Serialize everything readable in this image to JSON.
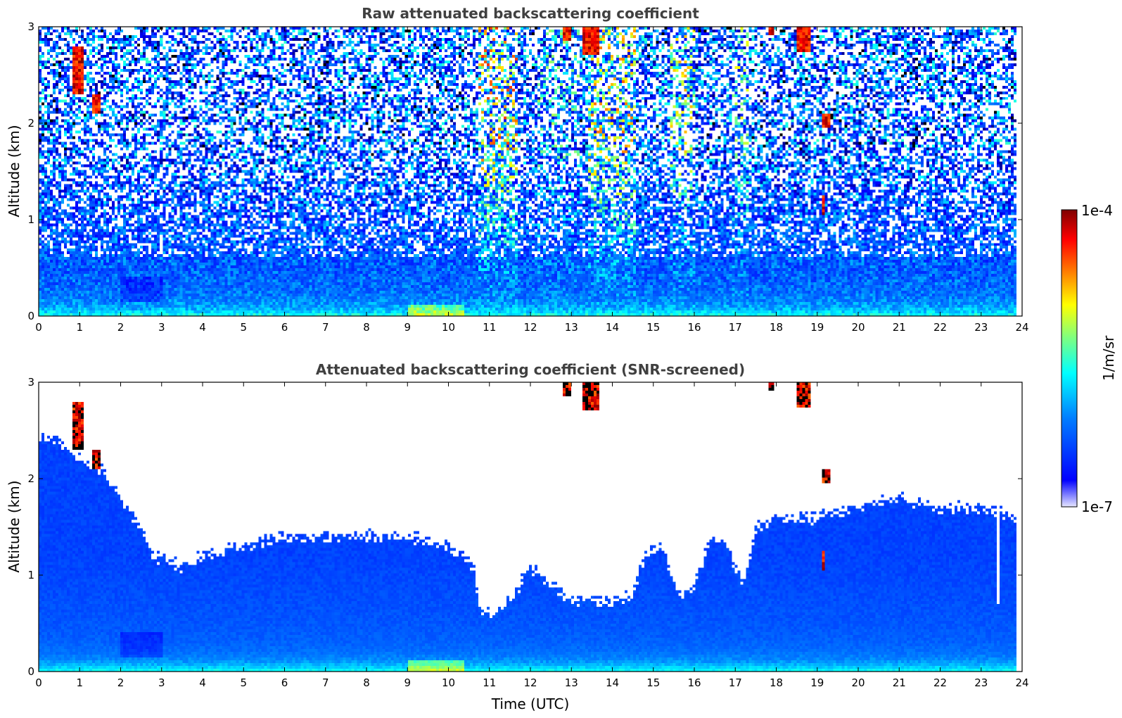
{
  "chart_data": [
    {
      "type": "heatmap",
      "title": "Raw attenuated backscattering coefficient",
      "xlabel": "",
      "ylabel": "Altitude (km)",
      "xlim": [
        0,
        24
      ],
      "ylim": [
        0,
        3
      ],
      "x_ticks": [
        "0",
        "1",
        "2",
        "3",
        "4",
        "5",
        "6",
        "7",
        "8",
        "9",
        "10",
        "11",
        "12",
        "13",
        "14",
        "15",
        "16",
        "17",
        "18",
        "19",
        "20",
        "21",
        "22",
        "23",
        "24"
      ],
      "y_ticks": [
        "0",
        "1",
        "2",
        "3"
      ],
      "screened": false
    },
    {
      "type": "heatmap",
      "title": "Attenuated backscattering coefficient (SNR-screened)",
      "xlabel": "Time (UTC)",
      "ylabel": "Altitude (km)",
      "xlim": [
        0,
        24
      ],
      "ylim": [
        0,
        3
      ],
      "x_ticks": [
        "0",
        "1",
        "2",
        "3",
        "4",
        "5",
        "6",
        "7",
        "8",
        "9",
        "10",
        "11",
        "12",
        "13",
        "14",
        "15",
        "16",
        "17",
        "18",
        "19",
        "20",
        "21",
        "22",
        "23",
        "24"
      ],
      "y_ticks": [
        "0",
        "1",
        "2",
        "3"
      ],
      "screened": true,
      "screening_top_km": [
        [
          0.0,
          2.4
        ],
        [
          0.5,
          2.4
        ],
        [
          1.0,
          2.2
        ],
        [
          1.5,
          2.1
        ],
        [
          2.0,
          1.8
        ],
        [
          2.5,
          1.5
        ],
        [
          2.8,
          1.2
        ],
        [
          3.5,
          1.1
        ],
        [
          4.0,
          1.2
        ],
        [
          5.0,
          1.3
        ],
        [
          6.0,
          1.4
        ],
        [
          7.0,
          1.4
        ],
        [
          8.0,
          1.4
        ],
        [
          9.0,
          1.4
        ],
        [
          10.0,
          1.3
        ],
        [
          10.6,
          1.1
        ],
        [
          10.8,
          0.6
        ],
        [
          11.2,
          0.6
        ],
        [
          11.6,
          0.8
        ],
        [
          12.0,
          1.1
        ],
        [
          12.5,
          0.9
        ],
        [
          13.0,
          0.75
        ],
        [
          13.5,
          0.75
        ],
        [
          14.0,
          0.7
        ],
        [
          14.5,
          0.8
        ],
        [
          14.8,
          1.2
        ],
        [
          15.2,
          1.3
        ],
        [
          15.6,
          0.8
        ],
        [
          16.0,
          0.9
        ],
        [
          16.4,
          1.4
        ],
        [
          16.8,
          1.3
        ],
        [
          17.2,
          0.9
        ],
        [
          17.5,
          1.5
        ],
        [
          18.0,
          1.6
        ],
        [
          19.0,
          1.6
        ],
        [
          20.0,
          1.7
        ],
        [
          21.0,
          1.8
        ],
        [
          22.0,
          1.7
        ],
        [
          23.0,
          1.7
        ],
        [
          23.9,
          1.6
        ]
      ]
    }
  ],
  "colorbar": {
    "label": "1/m/sr",
    "max_label": "1e-4",
    "min_label": "1e-7",
    "vmin": 1e-07,
    "vmax": 0.0001,
    "scale": "log",
    "colormap": "jet"
  },
  "cloud_features": [
    {
      "t_start": 0.8,
      "t_end": 1.1,
      "z_base": 2.3,
      "z_top": 2.8
    },
    {
      "t_start": 1.3,
      "t_end": 1.5,
      "z_base": 2.1,
      "z_top": 2.3
    },
    {
      "t_start": 12.8,
      "t_end": 13.0,
      "z_base": 2.85,
      "z_top": 3.0
    },
    {
      "t_start": 13.3,
      "t_end": 13.7,
      "z_base": 2.7,
      "z_top": 3.0
    },
    {
      "t_start": 17.8,
      "t_end": 17.95,
      "z_base": 2.9,
      "z_top": 3.0
    },
    {
      "t_start": 18.5,
      "t_end": 18.85,
      "z_base": 2.75,
      "z_top": 3.0
    },
    {
      "t_start": 19.15,
      "t_end": 19.35,
      "z_base": 1.95,
      "z_top": 2.1
    },
    {
      "t_start": 19.15,
      "t_end": 19.2,
      "z_base": 1.05,
      "z_top": 1.25
    }
  ],
  "colors": {
    "cmap_stops": [
      "#00007f",
      "#0000ff",
      "#007fff",
      "#00ffff",
      "#7fff7f",
      "#ffff00",
      "#ff7f00",
      "#ff0000",
      "#7f0000"
    ],
    "title": "#404040"
  }
}
